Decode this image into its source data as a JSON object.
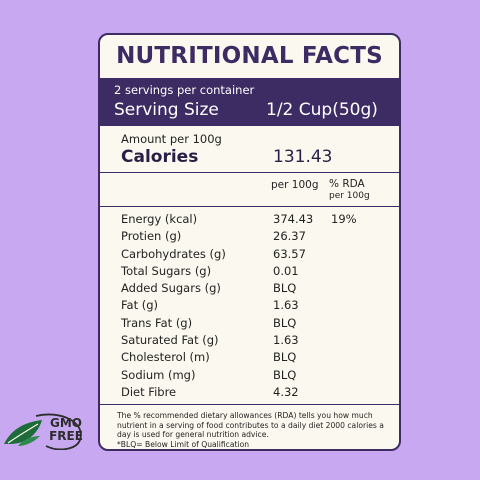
{
  "label": {
    "title": "NUTRITIONAL FACTS",
    "servings": "2 servings per container",
    "serving_size_label": "Serving Size",
    "serving_size_value": "1/2 Cup(50g)",
    "amount_per": "Amount per 100g",
    "calories_label": "Calories",
    "calories_value": "131.43",
    "col_per100": "per 100g",
    "col_rda": "% RDA",
    "col_rda_sub": "per 100g",
    "rows": [
      {
        "name": "Energy (kcal)",
        "value": "374.43",
        "rda": "19%"
      },
      {
        "name": "Protien (g)",
        "value": "26.37",
        "rda": ""
      },
      {
        "name": "Carbohydrates (g)",
        "value": "63.57",
        "rda": ""
      },
      {
        "name": "Total Sugars (g)",
        "value": "0.01",
        "rda": ""
      },
      {
        "name": "Added Sugars (g)",
        "value": "BLQ",
        "rda": ""
      },
      {
        "name": "Fat (g)",
        "value": "1.63",
        "rda": ""
      },
      {
        "name": "Trans Fat (g)",
        "value": "BLQ",
        "rda": ""
      },
      {
        "name": "Saturated Fat (g)",
        "value": "1.63",
        "rda": ""
      },
      {
        "name": "Cholesterol (m)",
        "value": "BLQ",
        "rda": ""
      },
      {
        "name": "Sodium (mg)",
        "value": "BLQ",
        "rda": ""
      },
      {
        "name": "Diet Fibre",
        "value": "4.32",
        "rda": ""
      }
    ],
    "footnote": "The % recommended dietary allowances (RDA) tells you how much nutrient in a serving of food contributes to a daily diet 2000 calories a day is used for general nutrition advice.",
    "footnote_blq": "*BLQ= Below Limit of Qualification"
  },
  "badge": {
    "line1": "GMO",
    "line2": "FREE",
    "icon": "leaf-icon"
  },
  "colors": {
    "background": "#c8a8f0",
    "accent": "#3d2b63",
    "panel": "#fbf9ef",
    "leaf": "#1e6b3a"
  }
}
